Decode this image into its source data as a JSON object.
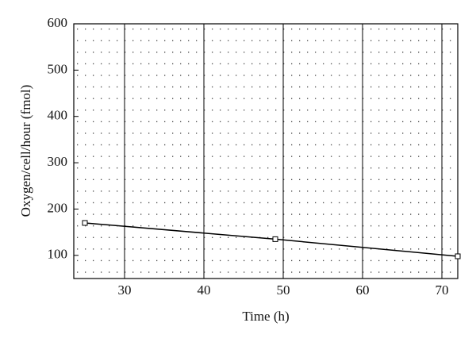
{
  "chart_data": {
    "type": "line",
    "x_label": "Time (h)",
    "y_label": "Oxygen/cell/hour (fmol)",
    "x": [
      25,
      49,
      72
    ],
    "series": [
      {
        "values": [
          170,
          135,
          98
        ],
        "color": "#000000"
      }
    ],
    "xlim": [
      23.6,
      72
    ],
    "xticks": [
      30,
      40,
      50,
      60,
      70
    ],
    "ylim": [
      50,
      600
    ],
    "yticks": [
      100,
      200,
      300,
      400,
      500,
      600
    ],
    "grid": "x"
  }
}
